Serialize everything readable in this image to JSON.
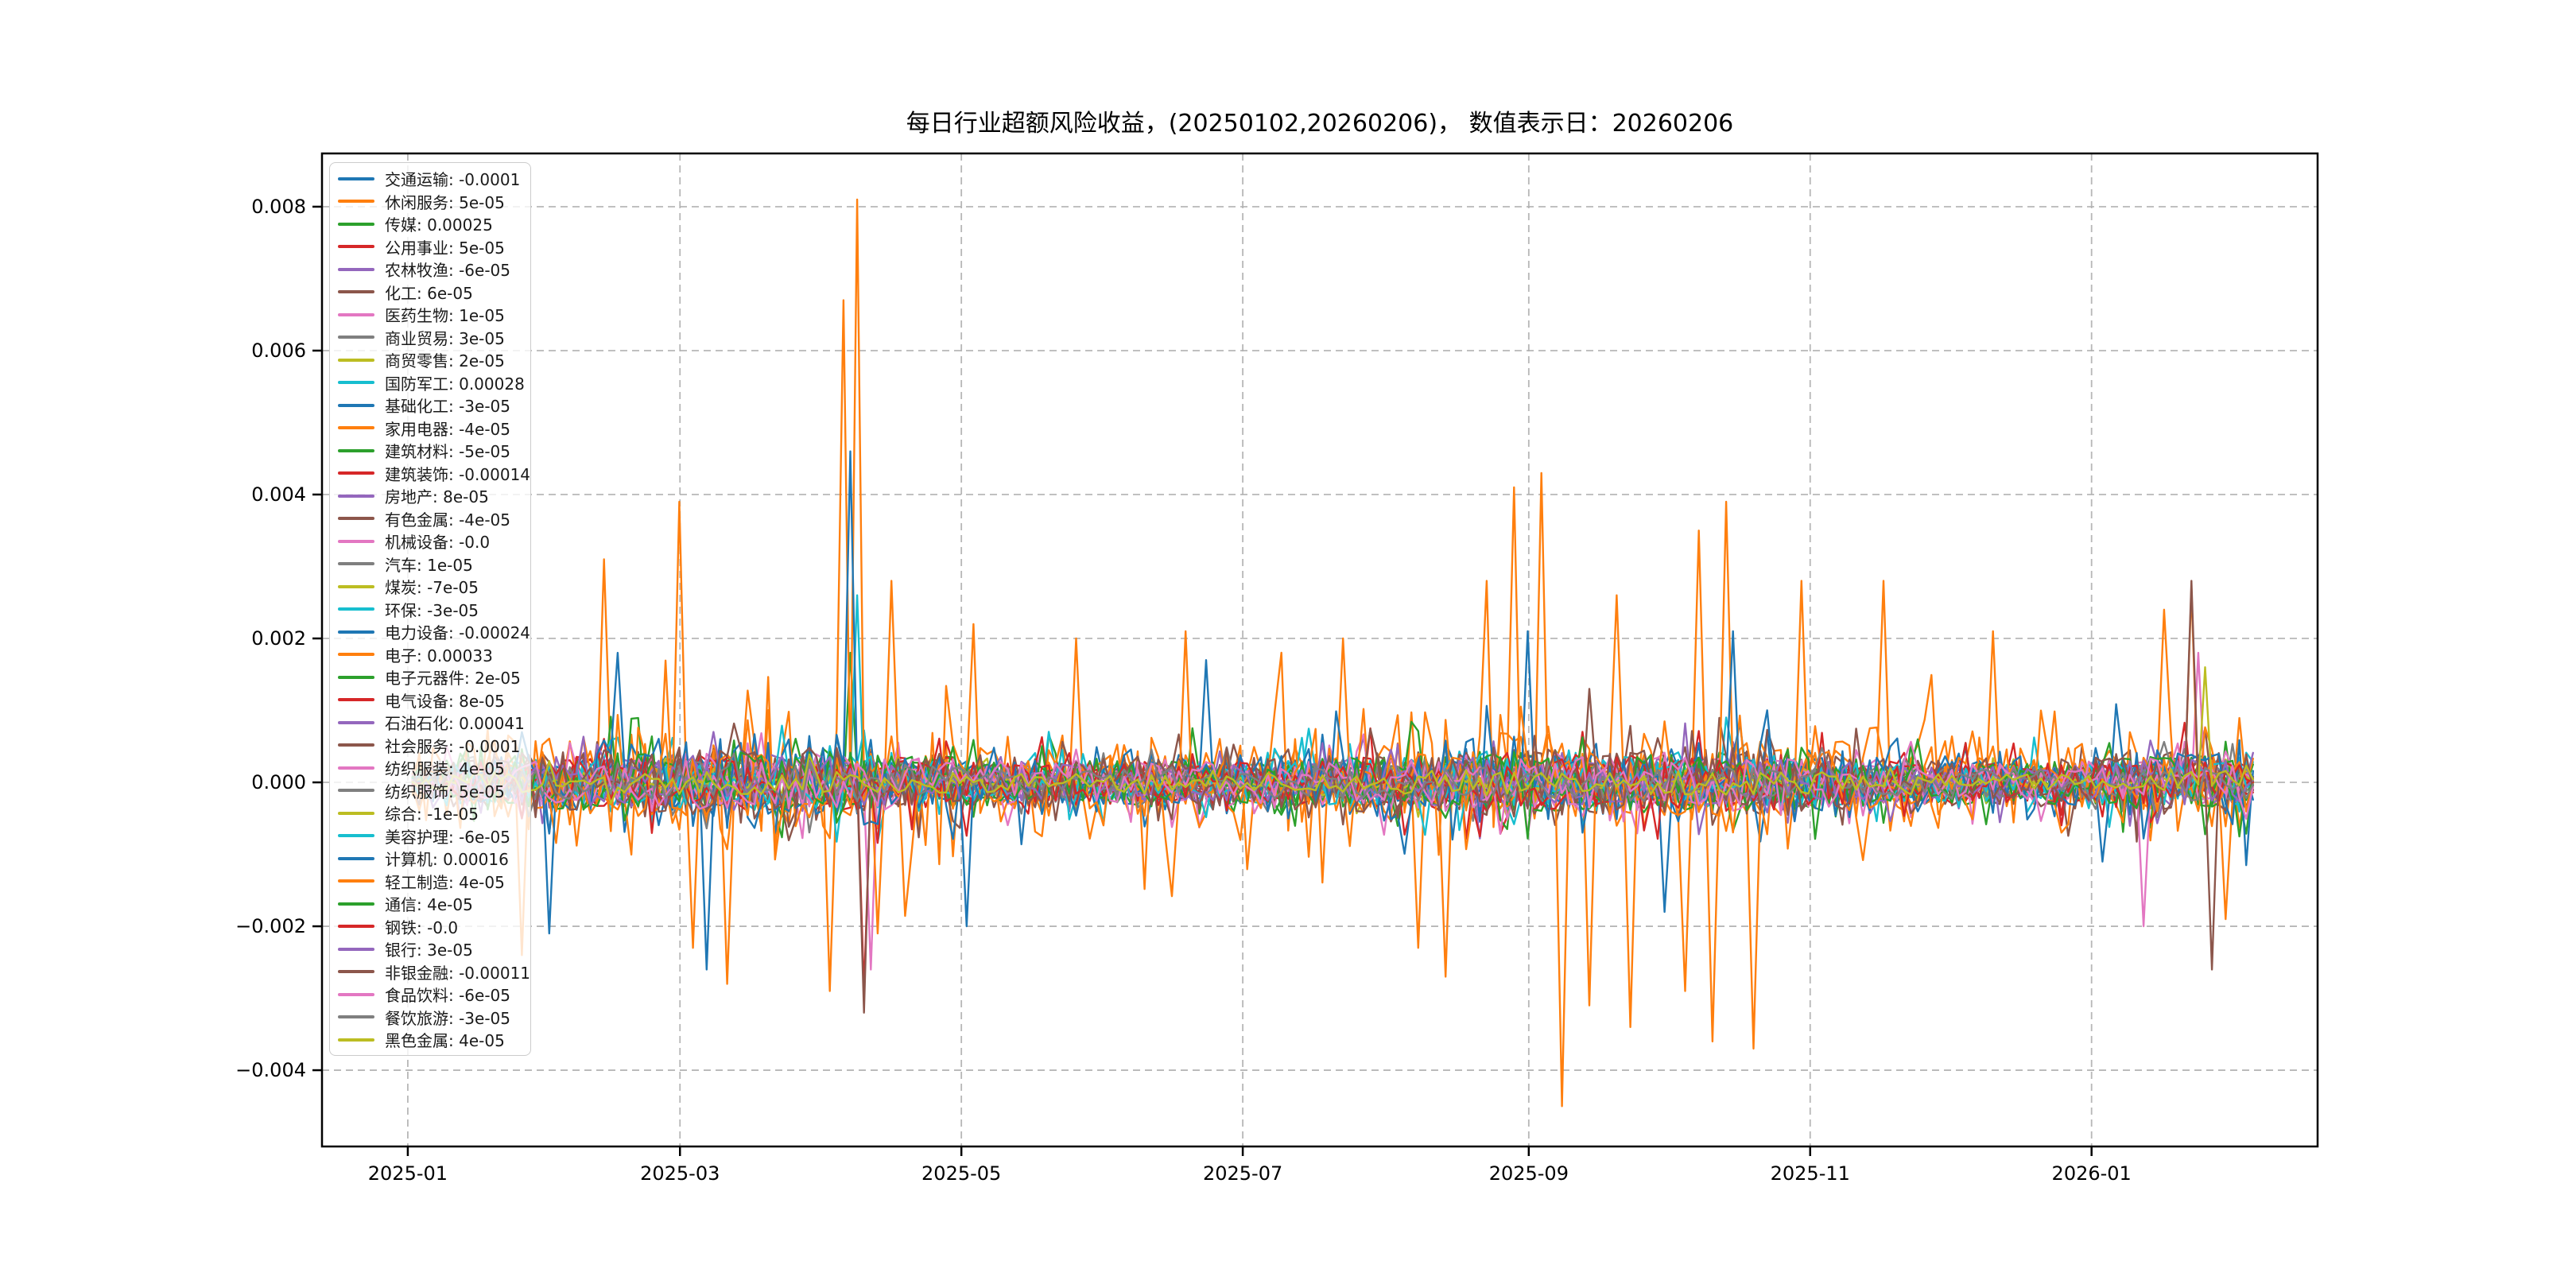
{
  "chart_data": {
    "type": "line",
    "title": "每日行业超额风险收益，(20250102,20260206)，  数值表示日：20260206",
    "date_range": [
      "20250102",
      "20260206"
    ],
    "grid": true,
    "legend_position": "upper-left",
    "ylim": [
      -0.00506,
      0.00874
    ],
    "xlim_days": [
      -18.6,
      414
    ],
    "data_day_range": [
      1,
      400
    ],
    "n_points": 270,
    "y_ticks": [
      {
        "label": "0.008",
        "value": 0.008
      },
      {
        "label": "0.006",
        "value": 0.006
      },
      {
        "label": "0.004",
        "value": 0.004
      },
      {
        "label": "0.002",
        "value": 0.002
      },
      {
        "label": "0.000",
        "value": 0.0
      },
      {
        "label": "−0.002",
        "value": -0.002
      },
      {
        "label": "−0.004",
        "value": -0.004
      }
    ],
    "x_ticks": [
      {
        "label": "2025-01",
        "day": 0
      },
      {
        "label": "2025-03",
        "day": 59
      },
      {
        "label": "2025-05",
        "day": 120
      },
      {
        "label": "2025-07",
        "day": 181
      },
      {
        "label": "2025-09",
        "day": 243
      },
      {
        "label": "2025-11",
        "day": 304
      },
      {
        "label": "2026-01",
        "day": 365
      }
    ],
    "grid_color": "#b0b0b0",
    "spine_color": "#000000",
    "series": [
      {
        "name": "交通运输",
        "label": "交通运输: -0.0001",
        "value": -0.0001,
        "color": "#1f77b4",
        "amp": 0.00032
      },
      {
        "name": "休闲服务",
        "label": "休闲服务: 5e-05",
        "value": 5e-05,
        "color": "#ff7f0e",
        "amp": 0.0006
      },
      {
        "name": "传媒",
        "label": "传媒: 0.00025",
        "value": 0.00025,
        "color": "#2ca02c",
        "amp": 0.00038
      },
      {
        "name": "公用事业",
        "label": "公用事业: 5e-05",
        "value": 5e-05,
        "color": "#d62728",
        "amp": 0.00032
      },
      {
        "name": "农林牧渔",
        "label": "农林牧渔: -6e-05",
        "value": -6e-05,
        "color": "#9467bd",
        "amp": 0.0003
      },
      {
        "name": "化工",
        "label": "化工: 6e-05",
        "value": 6e-05,
        "color": "#8c564b",
        "amp": 0.00038
      },
      {
        "name": "医药生物",
        "label": "医药生物: 1e-05",
        "value": 1e-05,
        "color": "#e377c2",
        "amp": 0.00032
      },
      {
        "name": "商业贸易",
        "label": "商业贸易: 3e-05",
        "value": 3e-05,
        "color": "#7f7f7f",
        "amp": 0.00024
      },
      {
        "name": "商贸零售",
        "label": "商贸零售: 2e-05",
        "value": 2e-05,
        "color": "#bcbd22",
        "amp": 0.0002
      },
      {
        "name": "国防军工",
        "label": "国防军工: 0.00028",
        "value": 0.00028,
        "color": "#17becf",
        "amp": 0.00038
      },
      {
        "name": "基础化工",
        "label": "基础化工: -3e-05",
        "value": -3e-05,
        "color": "#1f77b4",
        "amp": 0.00032
      },
      {
        "name": "家用电器",
        "label": "家用电器: -4e-05",
        "value": -4e-05,
        "color": "#ff7f0e",
        "amp": 0.00036
      },
      {
        "name": "建筑材料",
        "label": "建筑材料: -5e-05",
        "value": -5e-05,
        "color": "#2ca02c",
        "amp": 0.00034
      },
      {
        "name": "建筑装饰",
        "label": "建筑装饰: -0.00014",
        "value": -0.00014,
        "color": "#d62728",
        "amp": 0.00034
      },
      {
        "name": "房地产",
        "label": "房地产: 8e-05",
        "value": 8e-05,
        "color": "#9467bd",
        "amp": 0.00034
      },
      {
        "name": "有色金属",
        "label": "有色金属: -4e-05",
        "value": -4e-05,
        "color": "#8c564b",
        "amp": 0.0004
      },
      {
        "name": "机械设备",
        "label": "机械设备: -0.0",
        "value": 0.0,
        "color": "#e377c2",
        "amp": 0.00032
      },
      {
        "name": "汽车",
        "label": "汽车: 1e-05",
        "value": 1e-05,
        "color": "#7f7f7f",
        "amp": 0.00026
      },
      {
        "name": "煤炭",
        "label": "煤炭: -7e-05",
        "value": -7e-05,
        "color": "#bcbd22",
        "amp": 0.00022
      },
      {
        "name": "环保",
        "label": "环保: -3e-05",
        "value": -3e-05,
        "color": "#17becf",
        "amp": 0.00032
      },
      {
        "name": "电力设备",
        "label": "电力设备: -0.00024",
        "value": -0.00024,
        "color": "#1f77b4",
        "amp": 0.00036
      },
      {
        "name": "电子",
        "label": "电子: 0.00033",
        "value": 0.00033,
        "color": "#ff7f0e",
        "amp": 0.0009
      },
      {
        "name": "电子元器件",
        "label": "电子元器件: 2e-05",
        "value": 2e-05,
        "color": "#2ca02c",
        "amp": 0.00036
      },
      {
        "name": "电气设备",
        "label": "电气设备: 8e-05",
        "value": 8e-05,
        "color": "#d62728",
        "amp": 0.00036
      },
      {
        "name": "石油石化",
        "label": "石油石化: 0.00041",
        "value": 0.00041,
        "color": "#9467bd",
        "amp": 0.0003
      },
      {
        "name": "社会服务",
        "label": "社会服务: -0.0001",
        "value": -0.0001,
        "color": "#8c564b",
        "amp": 0.00042
      },
      {
        "name": "纺织服装",
        "label": "纺织服装: 4e-05",
        "value": 4e-05,
        "color": "#e377c2",
        "amp": 0.00036
      },
      {
        "name": "纺织服饰",
        "label": "纺织服饰: 5e-05",
        "value": 5e-05,
        "color": "#7f7f7f",
        "amp": 0.00026
      },
      {
        "name": "综合",
        "label": "综合: -1e-05",
        "value": -1e-05,
        "color": "#bcbd22",
        "amp": 8e-05
      },
      {
        "name": "美容护理",
        "label": "美容护理: -6e-05",
        "value": -6e-05,
        "color": "#17becf",
        "amp": 0.00032
      },
      {
        "name": "计算机",
        "label": "计算机: 0.00016",
        "value": 0.00016,
        "color": "#1f77b4",
        "amp": 0.00055
      },
      {
        "name": "轻工制造",
        "label": "轻工制造: 4e-05",
        "value": 4e-05,
        "color": "#ff7f0e",
        "amp": 0.00042
      },
      {
        "name": "通信",
        "label": "通信: 4e-05",
        "value": 4e-05,
        "color": "#2ca02c",
        "amp": 0.00036
      },
      {
        "name": "钢铁",
        "label": "钢铁: -0.0",
        "value": 0.0,
        "color": "#d62728",
        "amp": 0.00032
      },
      {
        "name": "银行",
        "label": "银行: 3e-05",
        "value": 3e-05,
        "color": "#9467bd",
        "amp": 0.0003
      },
      {
        "name": "非银金融",
        "label": "非银金融: -0.00011",
        "value": -0.00011,
        "color": "#8c564b",
        "amp": 0.00042
      },
      {
        "name": "食品饮料",
        "label": "食品饮料: -6e-05",
        "value": -6e-05,
        "color": "#e377c2",
        "amp": 0.00032
      },
      {
        "name": "餐饮旅游",
        "label": "餐饮旅游: -3e-05",
        "value": -3e-05,
        "color": "#7f7f7f",
        "amp": 0.00024
      },
      {
        "name": "黑色金属",
        "label": "黑色金属: 4e-05",
        "value": 4e-05,
        "color": "#bcbd22",
        "amp": 0.00015
      }
    ],
    "volatility_envelope": [
      [
        0.0,
        0.55
      ],
      [
        0.04,
        0.9
      ],
      [
        0.08,
        1.1
      ],
      [
        0.15,
        1.15
      ],
      [
        0.22,
        1.25
      ],
      [
        0.26,
        1.1
      ],
      [
        0.33,
        0.85
      ],
      [
        0.42,
        0.9
      ],
      [
        0.5,
        0.95
      ],
      [
        0.58,
        1.2
      ],
      [
        0.65,
        1.1
      ],
      [
        0.73,
        1.15
      ],
      [
        0.8,
        0.85
      ],
      [
        0.88,
        0.8
      ],
      [
        0.95,
        1.05
      ],
      [
        1.0,
        1.1
      ]
    ],
    "spikes": [
      {
        "s": 1,
        "t": 0.06,
        "v": -0.0024
      },
      {
        "s": 30,
        "t": 0.075,
        "v": -0.0021
      },
      {
        "s": 1,
        "t": 0.105,
        "v": 0.0031
      },
      {
        "s": 30,
        "t": 0.112,
        "v": 0.0018
      },
      {
        "s": 21,
        "t": 0.145,
        "v": 0.0039
      },
      {
        "s": 21,
        "t": 0.152,
        "v": -0.0023
      },
      {
        "s": 30,
        "t": 0.16,
        "v": -0.0026
      },
      {
        "s": 1,
        "t": 0.17,
        "v": -0.0028
      },
      {
        "s": 1,
        "t": 0.228,
        "v": -0.0029
      },
      {
        "s": 21,
        "t": 0.236,
        "v": 0.0067
      },
      {
        "s": 21,
        "t": 0.241,
        "v": 0.0081
      },
      {
        "s": 30,
        "t": 0.239,
        "v": 0.0046
      },
      {
        "s": 9,
        "t": 0.24,
        "v": 0.0026
      },
      {
        "s": 2,
        "t": 0.239,
        "v": 0.0018
      },
      {
        "s": 35,
        "t": 0.247,
        "v": -0.0032
      },
      {
        "s": 13,
        "t": 0.247,
        "v": -0.0029
      },
      {
        "s": 16,
        "t": 0.249,
        "v": -0.0026
      },
      {
        "s": 21,
        "t": 0.252,
        "v": -0.0021
      },
      {
        "s": 21,
        "t": 0.262,
        "v": 0.0028
      },
      {
        "s": 30,
        "t": 0.3,
        "v": -0.002
      },
      {
        "s": 21,
        "t": 0.305,
        "v": 0.0022
      },
      {
        "s": 1,
        "t": 0.36,
        "v": 0.002
      },
      {
        "s": 21,
        "t": 0.42,
        "v": 0.0021
      },
      {
        "s": 30,
        "t": 0.43,
        "v": 0.0017
      },
      {
        "s": 21,
        "t": 0.505,
        "v": 0.002
      },
      {
        "s": 1,
        "t": 0.545,
        "v": -0.0023
      },
      {
        "s": 1,
        "t": 0.563,
        "v": -0.0027
      },
      {
        "s": 21,
        "t": 0.585,
        "v": 0.0028
      },
      {
        "s": 21,
        "t": 0.6,
        "v": 0.0041
      },
      {
        "s": 21,
        "t": 0.612,
        "v": 0.0043
      },
      {
        "s": 30,
        "t": 0.607,
        "v": 0.0021
      },
      {
        "s": 21,
        "t": 0.625,
        "v": -0.0045
      },
      {
        "s": 21,
        "t": 0.638,
        "v": -0.0031
      },
      {
        "s": 35,
        "t": 0.64,
        "v": 0.0013
      },
      {
        "s": 21,
        "t": 0.655,
        "v": 0.0026
      },
      {
        "s": 21,
        "t": 0.663,
        "v": -0.0034
      },
      {
        "s": 30,
        "t": 0.68,
        "v": -0.0018
      },
      {
        "s": 21,
        "t": 0.69,
        "v": -0.0029
      },
      {
        "s": 21,
        "t": 0.7,
        "v": 0.0035
      },
      {
        "s": 21,
        "t": 0.706,
        "v": -0.0036
      },
      {
        "s": 21,
        "t": 0.715,
        "v": 0.0039
      },
      {
        "s": 30,
        "t": 0.716,
        "v": 0.0021
      },
      {
        "s": 21,
        "t": 0.728,
        "v": -0.0037
      },
      {
        "s": 21,
        "t": 0.755,
        "v": 0.0028
      },
      {
        "s": 1,
        "t": 0.8,
        "v": 0.0028
      },
      {
        "s": 21,
        "t": 0.86,
        "v": 0.0021
      },
      {
        "s": 26,
        "t": 0.94,
        "v": -0.002
      },
      {
        "s": 21,
        "t": 0.952,
        "v": 0.0024
      },
      {
        "s": 35,
        "t": 0.965,
        "v": 0.0028
      },
      {
        "s": 21,
        "t": 0.968,
        "v": 0.0027
      },
      {
        "s": 38,
        "t": 0.975,
        "v": 0.0016
      },
      {
        "s": 6,
        "t": 0.972,
        "v": 0.0018
      },
      {
        "s": 35,
        "t": 0.978,
        "v": -0.0026
      },
      {
        "s": 21,
        "t": 0.985,
        "v": -0.0019
      }
    ]
  }
}
